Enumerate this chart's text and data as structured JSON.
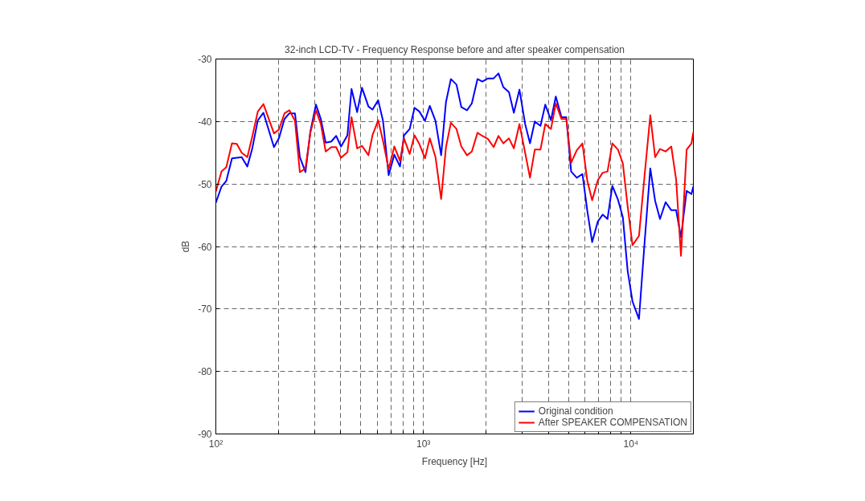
{
  "chart_data": {
    "type": "line",
    "title": "32-inch LCD-TV - Frequency Response before and after speaker compensation",
    "xlabel": "Frequency [Hz]",
    "ylabel": "dB",
    "log": "x",
    "grid": true,
    "legend": "bottom right",
    "line_style": "solid",
    "marker": "none",
    "xlim": [
      100,
      20000
    ],
    "ylim": [
      -90,
      -30
    ],
    "xticks": [
      {
        "value": 100,
        "label": "10²"
      },
      {
        "value": 200,
        "label": null
      },
      {
        "value": 300,
        "label": null
      },
      {
        "value": 400,
        "label": null
      },
      {
        "value": 500,
        "label": null
      },
      {
        "value": 600,
        "label": null
      },
      {
        "value": 700,
        "label": null
      },
      {
        "value": 800,
        "label": null
      },
      {
        "value": 900,
        "label": null
      },
      {
        "value": 1000,
        "label": "10³"
      },
      {
        "value": 2000,
        "label": null
      },
      {
        "value": 3000,
        "label": null
      },
      {
        "value": 4000,
        "label": null
      },
      {
        "value": 5000,
        "label": null
      },
      {
        "value": 6000,
        "label": null
      },
      {
        "value": 7000,
        "label": null
      },
      {
        "value": 8000,
        "label": null
      },
      {
        "value": 9000,
        "label": null
      },
      {
        "value": 10000,
        "label": "10⁴"
      },
      {
        "value": 20000,
        "label": null
      }
    ],
    "yticks": [
      -90,
      -80,
      -70,
      -60,
      -50,
      -40,
      -30
    ],
    "x": [
      100,
      106.5,
      112.3,
      119.6,
      126.2,
      133.2,
      141.8,
      149.6,
      159.3,
      169.6,
      190.6,
      201.2,
      214.1,
      226.1,
      240.6,
      253.9,
      270.3,
      285.4,
      303.7,
      320.5,
      338.2,
      360.1,
      380,
      401.1,
      430.7,
      450.5,
      479.6,
      506.1,
      543.6,
      568.6,
      605.6,
      639.1,
      680.4,
      724.4,
      771.5,
      806.8,
      859,
      906.5,
      956.1,
      1018,
      1074,
      1144,
      1218,
      1285,
      1357,
      1444,
      1524,
      1623,
      1712,
      1823,
      1923,
      2048,
      2181,
      2301,
      2428,
      2585,
      2729,
      2904,
      3093,
      3264,
      3443,
      3667,
      3868,
      4120,
      4346,
      4628,
      4884,
      5153,
      5487,
      5842,
      6166,
      6506,
      6928,
      7311,
      7714,
      8138,
      8664,
      9144,
      9647,
      10180,
      10940,
      11650,
      12400,
      13085,
      13810,
      14700,
      15650,
      16520,
      17430,
      18560,
      19580,
      20000
    ],
    "series": [
      {
        "name": "Original condition",
        "color": "#0000ff",
        "values": [
          -53.0,
          -50.4,
          -49.5,
          -45.9,
          -45.8,
          -45.7,
          -47.2,
          -44.4,
          -39.8,
          -38.6,
          -44.1,
          -42.7,
          -39.6,
          -38.7,
          -38.7,
          -45.7,
          -48.1,
          -41.6,
          -37.3,
          -39.6,
          -43.4,
          -43.2,
          -42.3,
          -44.0,
          -42.2,
          -34.8,
          -38.5,
          -34.6,
          -37.6,
          -38.1,
          -36.6,
          -39.9,
          -48.6,
          -45.3,
          -47.2,
          -42.2,
          -41.2,
          -37.8,
          -38.4,
          -39.9,
          -37.5,
          -39.9,
          -45.4,
          -36.9,
          -33.2,
          -34.1,
          -37.7,
          -38.2,
          -37.1,
          -33.2,
          -33.6,
          -33.1,
          -33.1,
          -32.3,
          -34.5,
          -35.3,
          -38.6,
          -34.9,
          -40.4,
          -43.5,
          -40.0,
          -40.7,
          -37.3,
          -39.8,
          -36.0,
          -39.3,
          -39.3,
          -48.0,
          -49.0,
          -48.4,
          -54.3,
          -59.3,
          -56.0,
          -54.9,
          -55.6,
          -50.3,
          -52.5,
          -55.3,
          -63.9,
          -68.8,
          -71.6,
          -59.2,
          -47.5,
          -52.7,
          -55.6,
          -52.9,
          -54.2,
          -54.2,
          -58.5,
          -51.1,
          -51.6,
          -50.4
        ]
      },
      {
        "name": "After SPEAKER COMPENSATION",
        "color": "#ff0000",
        "values": [
          -51.2,
          -48.0,
          -47.3,
          -43.5,
          -43.6,
          -45.0,
          -45.7,
          -42.5,
          -38.4,
          -37.2,
          -41.9,
          -41.3,
          -38.7,
          -38.2,
          -39.9,
          -48.1,
          -47.5,
          -41.8,
          -38.2,
          -40.4,
          -44.8,
          -44.1,
          -44.1,
          -45.8,
          -44.9,
          -39.3,
          -44.3,
          -43.9,
          -45.4,
          -42.2,
          -39.8,
          -43.1,
          -47.6,
          -44.0,
          -46.3,
          -42.7,
          -45.2,
          -42.2,
          -43.6,
          -45.9,
          -42.7,
          -45.7,
          -52.4,
          -44.1,
          -40.2,
          -41.2,
          -44.0,
          -45.4,
          -44.8,
          -41.8,
          -42.3,
          -42.8,
          -44.1,
          -42.3,
          -43.5,
          -42.7,
          -44.3,
          -40.4,
          -45.0,
          -49.0,
          -44.5,
          -44.5,
          -40.4,
          -41.2,
          -37.1,
          -39.6,
          -39.6,
          -46.6,
          -44.6,
          -43.5,
          -49.5,
          -52.6,
          -49.4,
          -48.2,
          -48.0,
          -43.5,
          -44.5,
          -46.7,
          -53.6,
          -59.8,
          -58.3,
          -48.5,
          -39.0,
          -45.7,
          -44.4,
          -44.8,
          -44.0,
          -49.3,
          -61.5,
          -44.5,
          -43.5,
          -41.7
        ]
      }
    ]
  }
}
